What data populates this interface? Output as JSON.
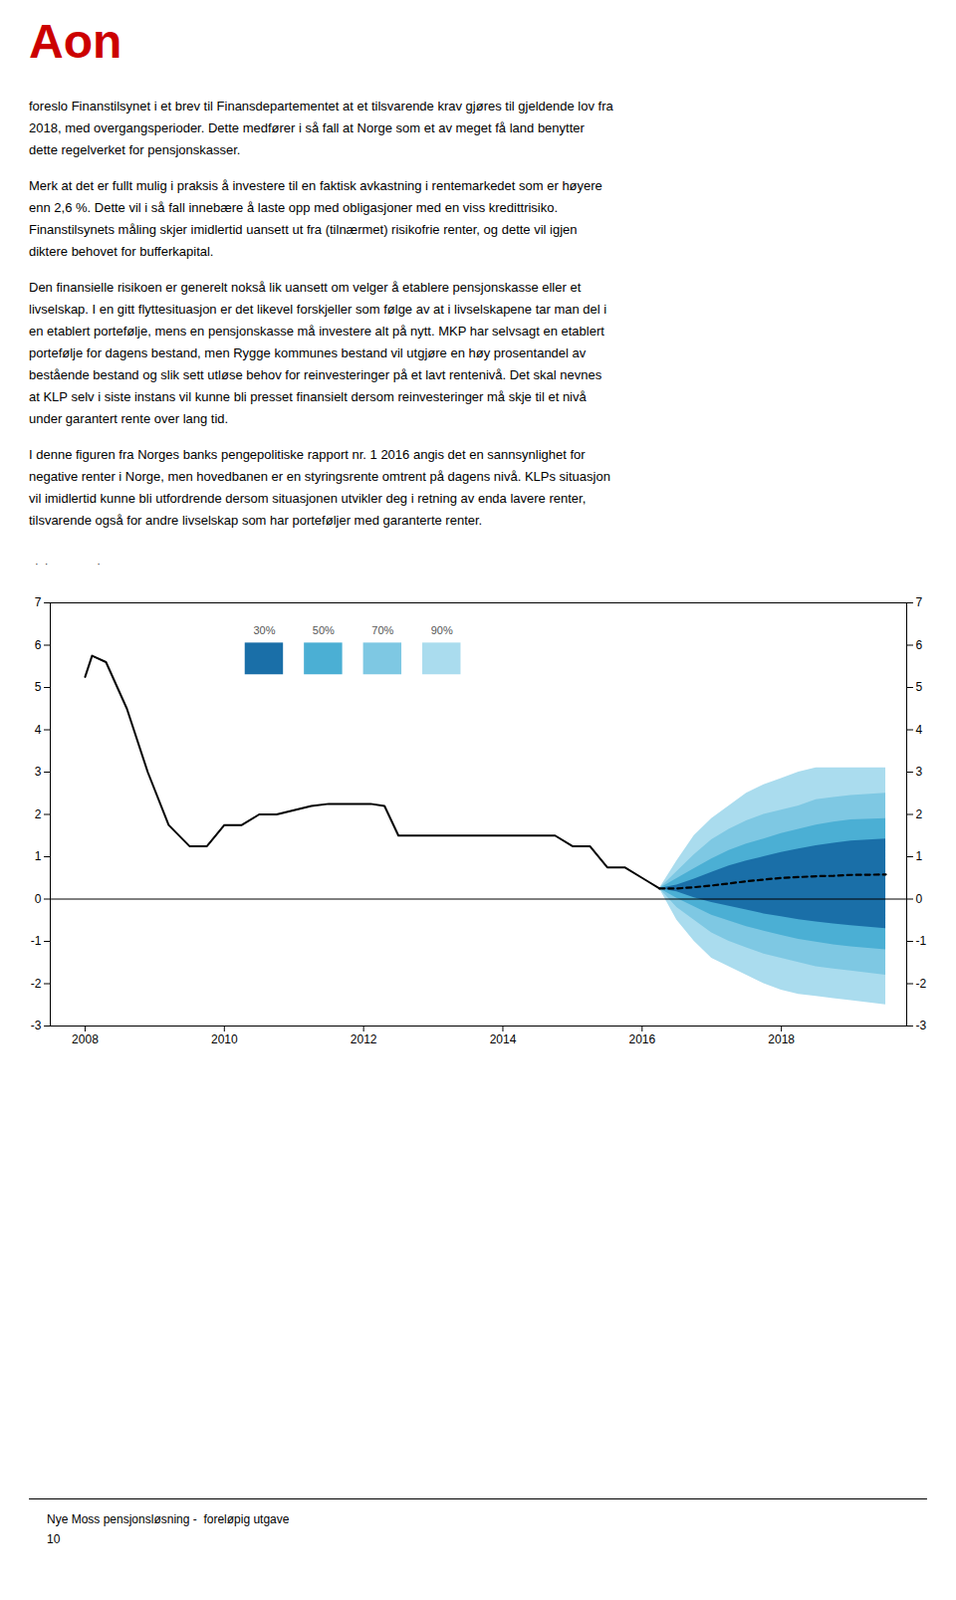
{
  "page": {
    "logo": {
      "text": "Aon",
      "color": "#cc0000"
    },
    "paragraphs": [
      [
        "foreslo Finanstilsynet i et brev til Finansdepartementet at et tilsvarende krav gjøres til gjeldende lov fra",
        "2018, med overgangsperioder. Dette medfører i så fall at Norge som et av meget få land benytter",
        "dette regelverket for pensjonskasser."
      ],
      [
        "Merk at det er fullt mulig i praksis å investere til en faktisk avkastning i rentemarkedet som er høyere",
        "enn 2,6 %. Dette vil i så fall innebære å laste opp med obligasjoner med en viss kredittrisiko.",
        "Finanstilsynets måling skjer imidlertid uansett ut fra (tilnærmet) risikofrie renter, og dette vil igjen",
        "diktere behovet for bufferkapital."
      ],
      [
        "Den finansielle risikoen er generelt nokså lik uansett om velger å etablere pensjonskasse eller et",
        "livselskap. I en gitt flyttesituasjon er det likevel forskjeller som følge av at i livselskapene tar man del i",
        "en etablert portefølje, mens en pensjonskasse må investere alt på nytt. MKP har selvsagt en etablert",
        "portefølje for dagens bestand, men Rygge kommunes bestand vil utgjøre en høy prosentandel av",
        "bestående bestand og slik sett utløse behov for reinvesteringer på et lavt rentenivå. Det skal nevnes",
        "at KLP selv i siste instans vil kunne bli presset finansielt dersom reinvesteringer må skje til et nivå",
        "under garantert rente over lang tid."
      ],
      [
        "I denne figuren fra Norges banks pengepolitiske rapport nr. 1 2016 angis det en sannsynlighet for",
        "negative renter i Norge, men hovedbanen er en styringsrente omtrent på dagens nivå. KLPs situasjon",
        "vil imidlertid kunne bli utfordrende dersom situasjonen utvikler deg i retning av enda lavere renter,",
        "tilsvarende også for andre livselskap som har porteføljer med garanterte renter."
      ]
    ],
    "footer": [
      "Nye Moss pensjonsløsning -  foreløpig utgave",
      "10"
    ]
  },
  "chart_data": {
    "type": "fan",
    "annotations": [
      "·  ·                ·"
    ],
    "xlim": [
      2007.5,
      2019.8
    ],
    "xticks": [
      2008,
      2010,
      2012,
      2014,
      2016,
      2018
    ],
    "ylim": [
      -3,
      7
    ],
    "yticks": [
      -3,
      -2,
      -1,
      0,
      1,
      2,
      3,
      4,
      5,
      6,
      7
    ],
    "y2lim": [
      -3,
      7
    ],
    "y2ticks": [
      -3,
      -2,
      -1,
      0,
      1,
      2,
      3,
      4,
      5,
      6,
      7
    ],
    "grid": false,
    "legend": "top",
    "bands": [
      {
        "name": "30%",
        "color": "#1a6fa8",
        "x": [
          2016.25,
          2016.5,
          2016.75,
          2017.0,
          2017.25,
          2017.5,
          2017.75,
          2018.0,
          2018.25,
          2018.5,
          2018.75,
          2019.0,
          2019.5
        ],
        "lower": [
          0.25,
          0.17,
          0.03,
          -0.08,
          -0.17,
          -0.26,
          -0.35,
          -0.42,
          -0.49,
          -0.54,
          -0.59,
          -0.63,
          -0.7
        ],
        "upper": [
          0.25,
          0.33,
          0.47,
          0.63,
          0.78,
          0.9,
          1.0,
          1.1,
          1.18,
          1.26,
          1.32,
          1.37,
          1.42
        ]
      },
      {
        "name": "50%",
        "color": "#4bafd4",
        "x": [
          2016.25,
          2016.5,
          2016.75,
          2017.0,
          2017.25,
          2017.5,
          2017.75,
          2018.0,
          2018.25,
          2018.5,
          2018.75,
          2019.0,
          2019.5
        ],
        "lower": [
          0.25,
          0.02,
          -0.18,
          -0.38,
          -0.52,
          -0.65,
          -0.76,
          -0.86,
          -0.95,
          -1.02,
          -1.08,
          -1.13,
          -1.2
        ],
        "upper": [
          0.25,
          0.48,
          0.72,
          0.95,
          1.15,
          1.3,
          1.42,
          1.55,
          1.65,
          1.75,
          1.82,
          1.87,
          1.9
        ]
      },
      {
        "name": "70%",
        "color": "#7ec8e3",
        "x": [
          2016.25,
          2016.5,
          2016.75,
          2017.0,
          2017.25,
          2017.5,
          2017.75,
          2018.0,
          2018.25,
          2018.5,
          2018.75,
          2019.0,
          2019.5
        ],
        "lower": [
          0.25,
          -0.2,
          -0.5,
          -0.8,
          -1.0,
          -1.15,
          -1.3,
          -1.4,
          -1.5,
          -1.6,
          -1.65,
          -1.7,
          -1.8
        ],
        "upper": [
          0.25,
          0.65,
          1.05,
          1.4,
          1.65,
          1.85,
          2.0,
          2.1,
          2.2,
          2.35,
          2.4,
          2.45,
          2.5
        ]
      },
      {
        "name": "90%",
        "color": "#aadcee",
        "x": [
          2016.25,
          2016.5,
          2016.75,
          2017.0,
          2017.25,
          2017.5,
          2017.75,
          2018.0,
          2018.25,
          2018.5,
          2018.75,
          2019.0,
          2019.5
        ],
        "lower": [
          0.25,
          -0.5,
          -1.0,
          -1.4,
          -1.6,
          -1.8,
          -2.0,
          -2.15,
          -2.25,
          -2.3,
          -2.35,
          -2.4,
          -2.5
        ],
        "upper": [
          0.25,
          0.9,
          1.5,
          1.9,
          2.2,
          2.5,
          2.7,
          2.85,
          3.0,
          3.1,
          3.1,
          3.1,
          3.1
        ]
      }
    ],
    "series": [
      {
        "type": "line",
        "color": "#000000",
        "line_style": "solid",
        "x": [
          2008.0,
          2008.1,
          2008.3,
          2008.6,
          2008.9,
          2009.2,
          2009.5,
          2009.75,
          2010.0,
          2010.25,
          2010.5,
          2010.75,
          2011.0,
          2011.25,
          2011.5,
          2011.75,
          2012.0,
          2012.1,
          2012.3,
          2012.5,
          2012.75,
          2013.0,
          2013.25,
          2013.5,
          2013.75,
          2014.0,
          2014.25,
          2014.5,
          2014.75,
          2015.0,
          2015.25,
          2015.5,
          2015.75,
          2016.0,
          2016.1,
          2016.25
        ],
        "values": [
          5.25,
          5.75,
          5.6,
          4.5,
          3.0,
          1.75,
          1.25,
          1.25,
          1.75,
          1.75,
          2.0,
          2.0,
          2.1,
          2.2,
          2.25,
          2.25,
          2.25,
          2.25,
          2.2,
          1.5,
          1.5,
          1.5,
          1.5,
          1.5,
          1.5,
          1.5,
          1.5,
          1.5,
          1.5,
          1.25,
          1.25,
          0.75,
          0.75,
          0.5,
          0.4,
          0.25
        ]
      },
      {
        "type": "line",
        "color": "#000000",
        "line_style": "dashed",
        "x": [
          2016.25,
          2016.5,
          2016.75,
          2017.0,
          2017.25,
          2017.5,
          2017.75,
          2018.0,
          2018.25,
          2018.5,
          2018.75,
          2019.0,
          2019.5
        ],
        "values": [
          0.25,
          0.25,
          0.28,
          0.32,
          0.37,
          0.42,
          0.46,
          0.5,
          0.52,
          0.54,
          0.55,
          0.57,
          0.58
        ]
      }
    ],
    "rules": [
      {
        "value": 0,
        "color": "#000000"
      }
    ]
  }
}
